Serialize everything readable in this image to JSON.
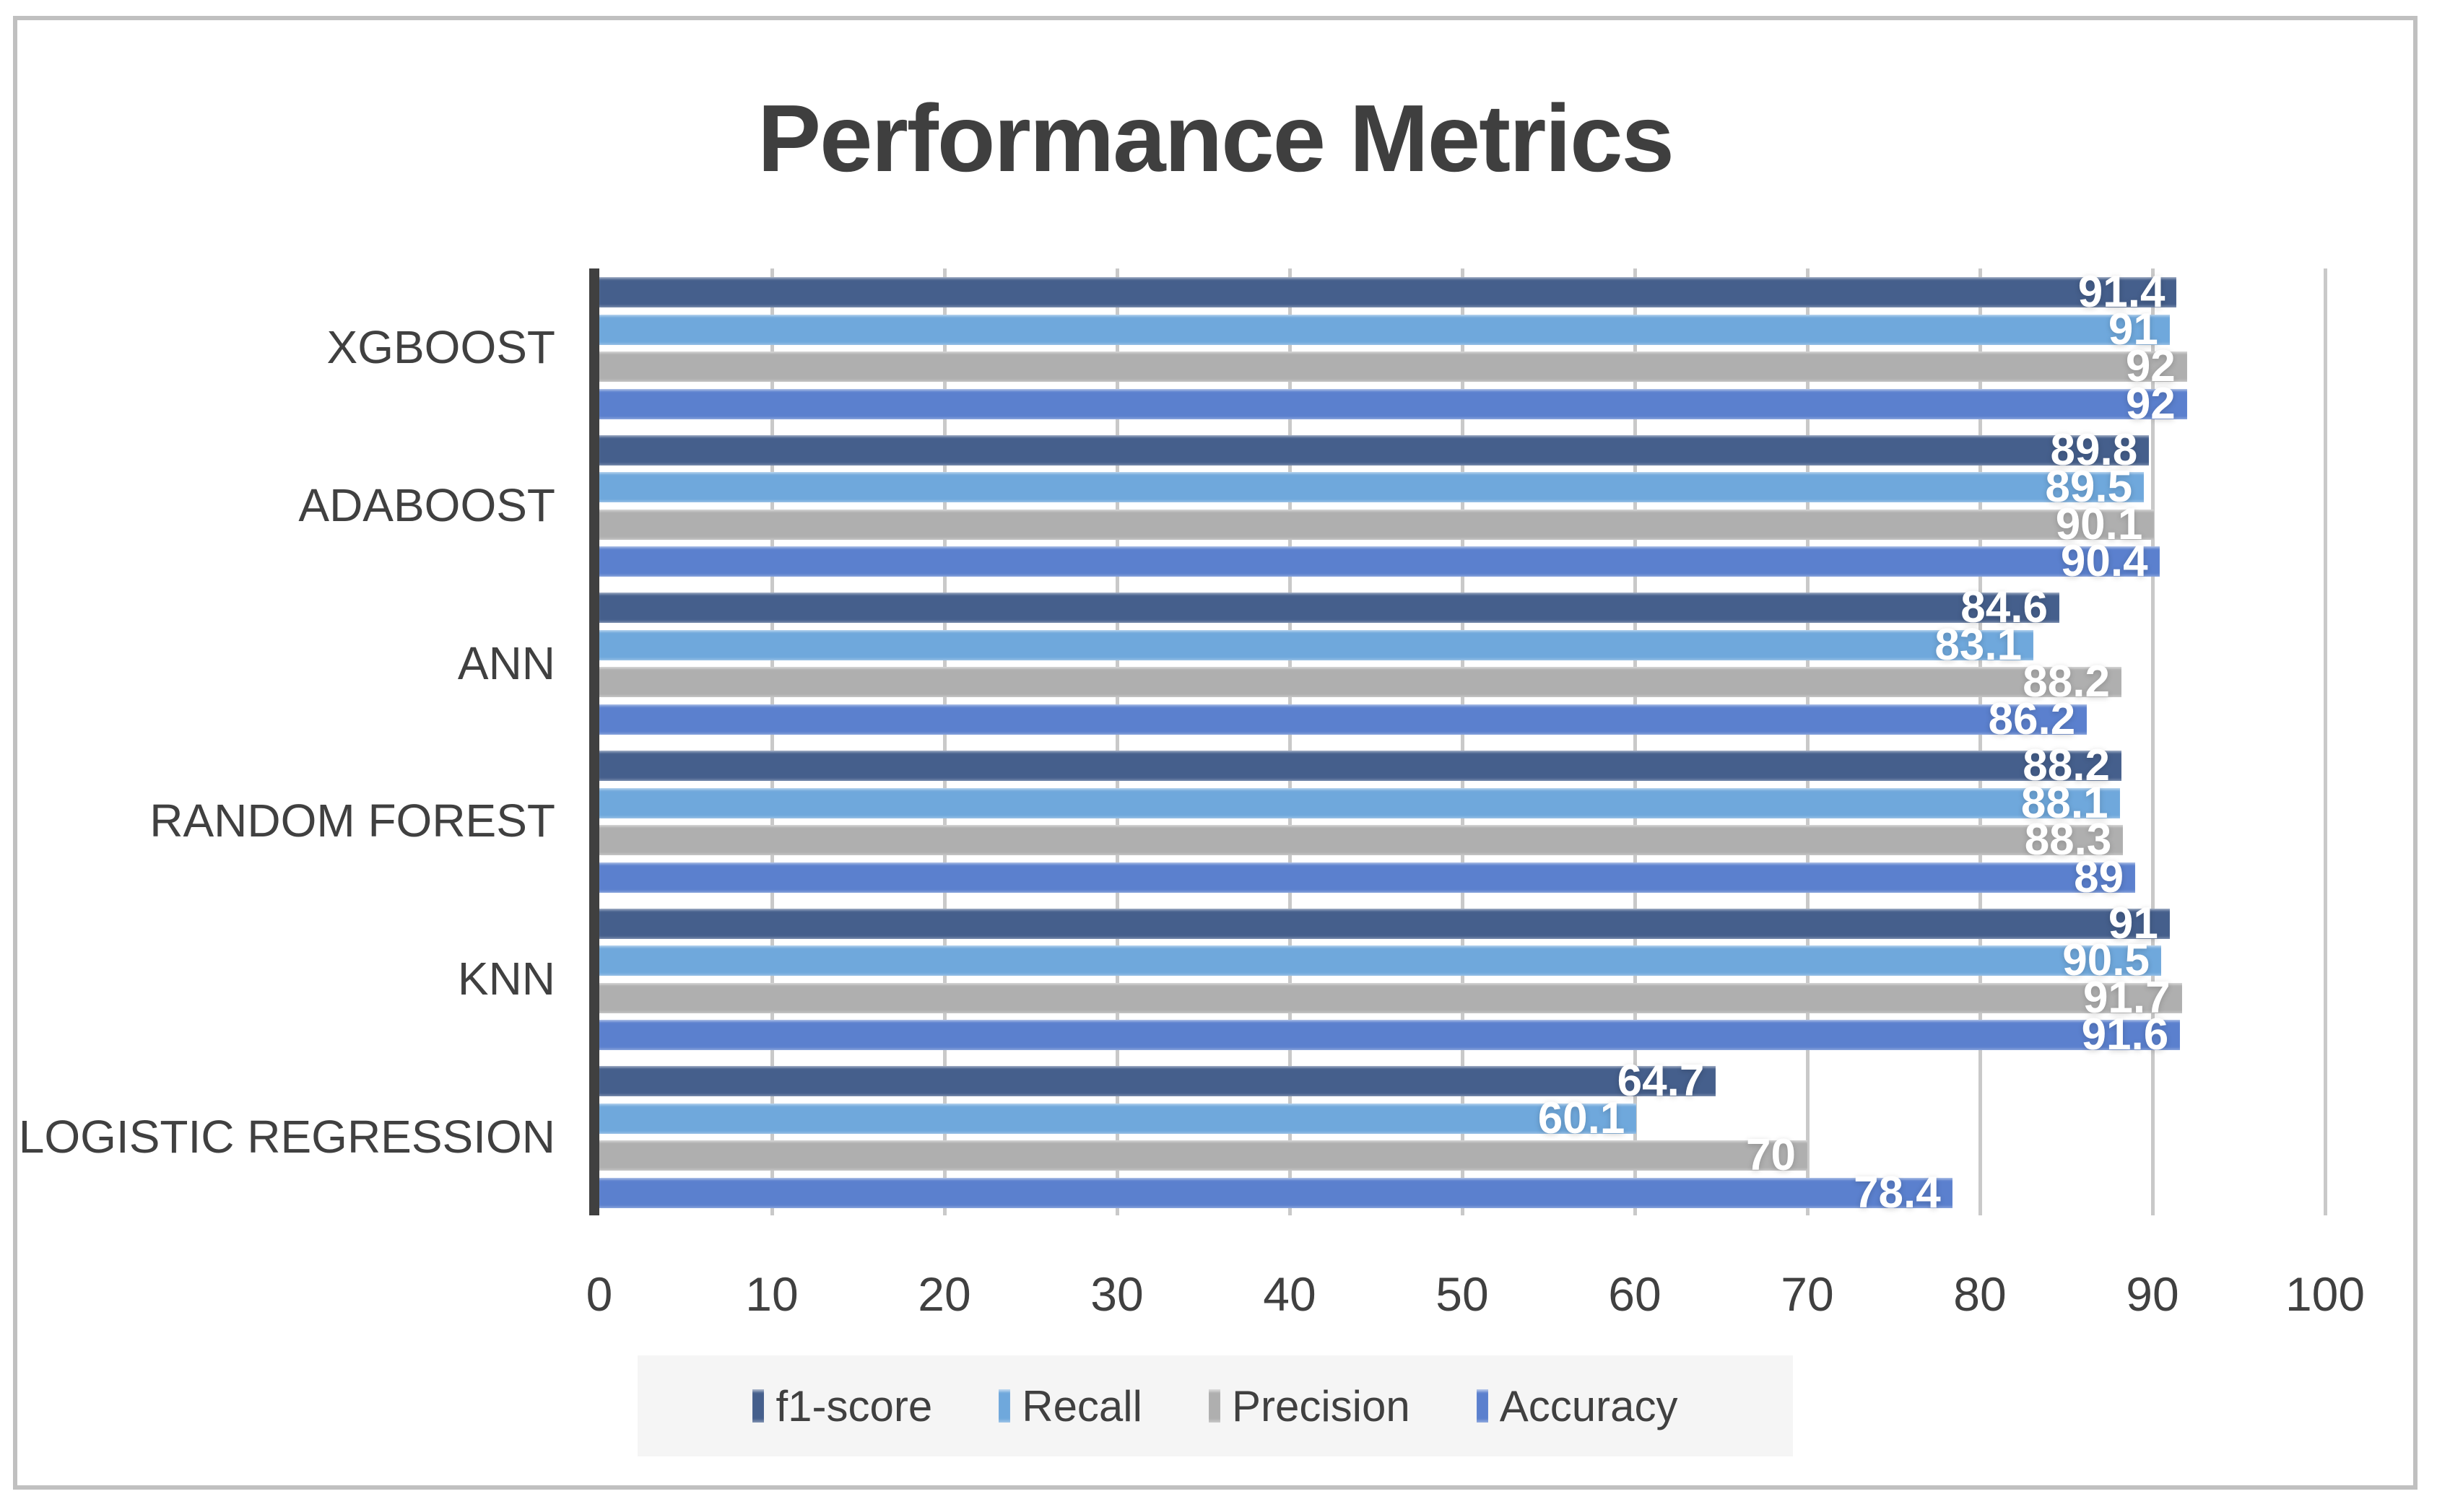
{
  "chart_data": {
    "type": "bar",
    "orientation": "horizontal",
    "title": "Performance Metrics",
    "categories": [
      "XGBOOST",
      "ADABOOST",
      "ANN",
      "RANDOM FOREST",
      "KNN",
      "LOGISTIC REGRESSION"
    ],
    "series": [
      {
        "name": "f1-score",
        "color": "#455F8C",
        "values": [
          91.4,
          89.8,
          84.6,
          88.2,
          91,
          64.7
        ]
      },
      {
        "name": "Recall",
        "color": "#6FA8DC",
        "values": [
          91,
          89.5,
          83.1,
          88.1,
          90.5,
          60.1
        ]
      },
      {
        "name": "Precision",
        "color": "#AFAFAF",
        "values": [
          92,
          90.1,
          88.2,
          88.3,
          91.7,
          70
        ]
      },
      {
        "name": "Accuracy",
        "color": "#5B80CE",
        "values": [
          92,
          90.4,
          86.2,
          89,
          91.6,
          78.4
        ]
      }
    ],
    "xlim": [
      0,
      100
    ],
    "xticks": [
      0,
      10,
      20,
      30,
      40,
      50,
      60,
      70,
      80,
      90,
      100
    ],
    "grid": true,
    "legend_position": "bottom"
  },
  "appearance": {
    "title_color": "#3F3F3F",
    "axis_line_color": "#404040",
    "gridline_color": "#C9C9C9",
    "tick_color": "#404040",
    "category_label_color": "#404040",
    "bar_label_color": "#FFFFFF",
    "legend_bg": "#F5F5F5",
    "frame_border_color": "#C0C0C0",
    "background": "#FFFFFF"
  }
}
